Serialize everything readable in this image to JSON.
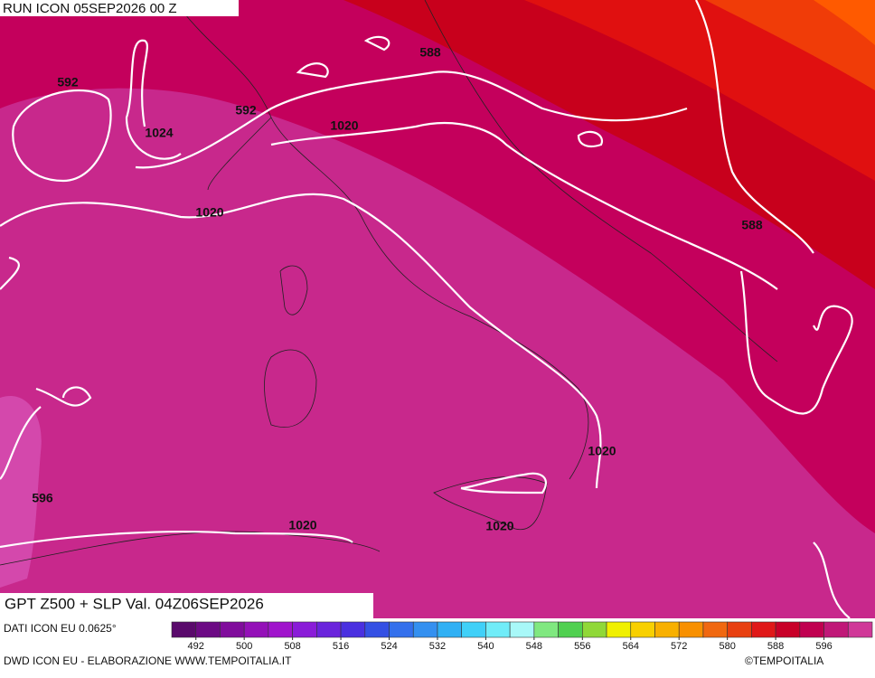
{
  "header": {
    "run": "RUN ICON 05SEP2026 00 Z",
    "title": "GPT Z500 + SLP Val. 04Z06SEP2026"
  },
  "map": {
    "contour_labels": [
      592,
      592,
      588,
      1024,
      1020,
      1020,
      588,
      1020,
      596,
      1020,
      1020
    ]
  },
  "colorbar": {
    "range": [
      488,
      604
    ],
    "ticks": [
      492,
      500,
      508,
      516,
      524,
      532,
      540,
      548,
      556,
      564,
      572,
      580,
      588,
      596
    ],
    "colors": [
      "#5a0a6c",
      "#6c0a84",
      "#800c9c",
      "#9410b8",
      "#a014cc",
      "#8a1cd8",
      "#6a24dc",
      "#4a30e0",
      "#3450e4",
      "#3470ec",
      "#3490f0",
      "#30b0f4",
      "#40d0f8",
      "#70ecf8",
      "#a8f8f8",
      "#80e880",
      "#50d050",
      "#90d838",
      "#f0f000",
      "#f8d000",
      "#f8b000",
      "#f89000",
      "#f06810",
      "#e84010",
      "#e01818",
      "#c80028",
      "#c00050",
      "#c01878",
      "#d03898"
    ]
  },
  "footer": {
    "source": "DATI ICON EU 0.0625°",
    "credit": "DWD ICON EU - ELABORAZIONE WWW.TEMPOITALIA.IT",
    "copyright": "©TEMPOITALIA"
  }
}
